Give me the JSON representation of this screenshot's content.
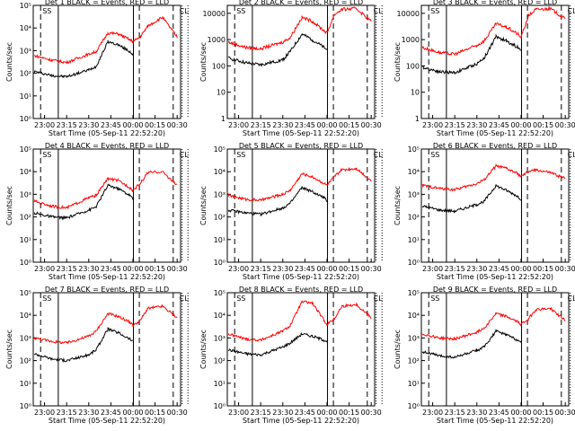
{
  "colors": {
    "events": "#000000",
    "lld": "#ff0000",
    "background": "#ffffff"
  },
  "x_ticks": [
    "23:00",
    "23:15",
    "23:30",
    "23:45",
    "00:00",
    "00:15",
    "00:30"
  ],
  "x_label": "Start Time (05-Sep-11 22:52:20)",
  "y_label": "Counts/sec",
  "ylim_log10": [
    0,
    5
  ],
  "markers": {
    "dashed_minutes": [
      5,
      72,
      95
    ],
    "solid_minutes": [
      17,
      68
    ],
    "dotted_minutes": [
      101,
      105
    ]
  },
  "panels_text": {
    "p1": {
      "title": "Det 1 BLACK = Events, RED = LLD",
      "y_ticks": [
        "10⁰",
        "10¹",
        "10²",
        "10³",
        "10⁴",
        "10⁵"
      ],
      "label_ss": "SS",
      "label_cl": "CL"
    },
    "p2": {
      "title": "Det 2 BLACK = Events, RED = LLD",
      "y_ticks": [
        "1",
        "10",
        "100",
        "1000",
        "10000"
      ],
      "label_ss": "SS",
      "label_cl": "CL"
    },
    "p3": {
      "title": "Det 3 BLACK = Events, RED = LLD",
      "y_ticks": [
        "1",
        "10",
        "100",
        "1000",
        "10000"
      ],
      "label_ss": "SS",
      "label_cl": "CL"
    },
    "p4": {
      "title": "Det 4 BLACK = Events, RED = LLD",
      "y_ticks": [
        "10⁰",
        "10¹",
        "10²",
        "10³",
        "10⁴",
        "10⁵"
      ],
      "label_ss": "SS",
      "label_cl": "CL"
    },
    "p5": {
      "title": "Det 5 BLACK = Events, RED = LLD",
      "y_ticks": [
        "10⁰",
        "10¹",
        "10²",
        "10³",
        "10⁴",
        "10⁵"
      ],
      "label_ss": "SS",
      "label_cl": "CL"
    },
    "p6": {
      "title": "Det 6 BLACK = Events, RED = LLD",
      "y_ticks": [
        "10⁰",
        "10¹",
        "10²",
        "10³",
        "10⁴",
        "10⁵"
      ],
      "label_ss": "SS",
      "label_cl": "CL"
    },
    "p7": {
      "title": "Det 7 BLACK = Events, RED = LLD",
      "y_ticks": [
        "10⁰",
        "10¹",
        "10²",
        "10³",
        "10⁴",
        "10⁵"
      ],
      "label_ss": "SS",
      "label_cl": "CL"
    },
    "p8": {
      "title": "Det 8 BLACK = Events, RED = LLD",
      "y_ticks": [
        "10⁰",
        "10¹",
        "10²",
        "10³",
        "10⁴",
        "10⁵"
      ],
      "label_ss": "SS",
      "label_cl": "CL"
    },
    "p9": {
      "title": "Det 9 BLACK = Events, RED = LLD",
      "y_ticks": [
        "10⁰",
        "10¹",
        "10²",
        "10³",
        "10⁴",
        "10⁵"
      ],
      "label_ss": "SS",
      "label_cl": "CL"
    }
  },
  "chart_data": [
    {
      "type": "line",
      "title": "Det 1 BLACK = Events, RED = LLD",
      "xlabel": "Start Time (05-Sep-11 22:52:20)",
      "ylabel": "Counts/sec",
      "yscale": "log",
      "ylim": [
        1,
        100000
      ],
      "series": [
        {
          "name": "Events",
          "color": "#000000",
          "x": [
            "22:53",
            "23:05",
            "23:15",
            "23:30",
            "23:35",
            "23:43",
            "23:50",
            "23:58",
            "00:00"
          ],
          "y": [
            120,
            80,
            70,
            140,
            200,
            2500,
            1800,
            900,
            700
          ]
        },
        {
          "name": "LLD",
          "color": "#ff0000",
          "x": [
            "22:53",
            "23:05",
            "23:15",
            "23:30",
            "23:35",
            "23:43",
            "23:50",
            "23:58",
            "00:00",
            "00:05",
            "00:10",
            "00:20",
            "00:30"
          ],
          "y": [
            600,
            380,
            300,
            700,
            900,
            6000,
            5500,
            3000,
            2500,
            4000,
            12000,
            30000,
            4000
          ]
        }
      ]
    },
    {
      "type": "line",
      "title": "Det 2 BLACK = Events, RED = LLD",
      "xlabel": "Start Time (05-Sep-11 22:52:20)",
      "ylabel": "Counts/sec",
      "yscale": "log",
      "ylim": [
        1,
        20000
      ],
      "series": [
        {
          "name": "Events",
          "color": "#000000",
          "x": [
            "22:53",
            "23:05",
            "23:15",
            "23:30",
            "23:35",
            "23:43",
            "23:50",
            "23:58",
            "00:00"
          ],
          "y": [
            200,
            130,
            110,
            170,
            350,
            1600,
            1000,
            500,
            400
          ]
        },
        {
          "name": "LLD",
          "color": "#ff0000",
          "x": [
            "22:53",
            "23:05",
            "23:15",
            "23:30",
            "23:35",
            "23:43",
            "23:50",
            "23:58",
            "00:00",
            "00:05",
            "00:10",
            "00:20",
            "00:30"
          ],
          "y": [
            800,
            500,
            450,
            800,
            1200,
            7000,
            5000,
            2200,
            1800,
            9000,
            14000,
            15000,
            5000
          ]
        }
      ]
    },
    {
      "type": "line",
      "title": "Det 3 BLACK = Events, RED = LLD",
      "xlabel": "Start Time (05-Sep-11 22:52:20)",
      "ylabel": "Counts/sec",
      "yscale": "log",
      "ylim": [
        1,
        20000
      ],
      "series": [
        {
          "name": "Events",
          "color": "#000000",
          "x": [
            "22:53",
            "23:05",
            "23:15",
            "23:30",
            "23:35",
            "23:43",
            "23:50",
            "23:58",
            "00:00"
          ],
          "y": [
            90,
            60,
            55,
            120,
            200,
            1300,
            900,
            500,
            400
          ]
        },
        {
          "name": "LLD",
          "color": "#ff0000",
          "x": [
            "22:53",
            "23:05",
            "23:15",
            "23:30",
            "23:35",
            "23:43",
            "23:50",
            "23:58",
            "00:00",
            "00:05",
            "00:10",
            "00:20",
            "00:30"
          ],
          "y": [
            500,
            320,
            280,
            600,
            900,
            4000,
            3000,
            1600,
            1200,
            8000,
            14000,
            15000,
            6000
          ]
        }
      ]
    },
    {
      "type": "line",
      "title": "Det 4 BLACK = Events, RED = LLD",
      "xlabel": "Start Time (05-Sep-11 22:52:20)",
      "ylabel": "Counts/sec",
      "yscale": "log",
      "ylim": [
        1,
        100000
      ],
      "series": [
        {
          "name": "Events",
          "color": "#000000",
          "x": [
            "22:53",
            "23:05",
            "23:15",
            "23:30",
            "23:35",
            "23:43",
            "23:50",
            "23:58",
            "00:00"
          ],
          "y": [
            150,
            100,
            90,
            200,
            280,
            2500,
            1800,
            900,
            600
          ]
        },
        {
          "name": "LLD",
          "color": "#ff0000",
          "x": [
            "22:53",
            "23:05",
            "23:15",
            "23:30",
            "23:35",
            "23:43",
            "23:50",
            "23:58",
            "00:00",
            "00:05",
            "00:10",
            "00:20",
            "00:30"
          ],
          "y": [
            500,
            300,
            250,
            700,
            900,
            5000,
            4000,
            2000,
            1500,
            3000,
            9000,
            10000,
            2500
          ]
        }
      ]
    },
    {
      "type": "line",
      "title": "Det 5 BLACK = Events, RED = LLD",
      "xlabel": "Start Time (05-Sep-11 22:52:20)",
      "ylabel": "Counts/sec",
      "yscale": "log",
      "ylim": [
        1,
        100000
      ],
      "series": [
        {
          "name": "Events",
          "color": "#000000",
          "x": [
            "22:53",
            "23:05",
            "23:15",
            "23:30",
            "23:35",
            "23:43",
            "23:50",
            "23:58",
            "00:00"
          ],
          "y": [
            200,
            150,
            130,
            250,
            400,
            2000,
            1300,
            700,
            500
          ]
        },
        {
          "name": "LLD",
          "color": "#ff0000",
          "x": [
            "22:53",
            "23:05",
            "23:15",
            "23:30",
            "23:35",
            "23:43",
            "23:50",
            "23:58",
            "00:00",
            "00:05",
            "00:10",
            "00:20",
            "00:30"
          ],
          "y": [
            900,
            600,
            550,
            1000,
            1500,
            8000,
            6000,
            3000,
            2500,
            6000,
            12000,
            14000,
            4000
          ]
        }
      ]
    },
    {
      "type": "line",
      "title": "Det 6 BLACK = Events, RED = LLD",
      "xlabel": "Start Time (05-Sep-11 22:52:20)",
      "ylabel": "Counts/sec",
      "yscale": "log",
      "ylim": [
        1,
        100000
      ],
      "series": [
        {
          "name": "Events",
          "color": "#000000",
          "x": [
            "22:53",
            "23:05",
            "23:15",
            "23:30",
            "23:35",
            "23:43",
            "23:50",
            "23:58",
            "00:00"
          ],
          "y": [
            300,
            200,
            180,
            350,
            500,
            2400,
            1500,
            800,
            600
          ]
        },
        {
          "name": "LLD",
          "color": "#ff0000",
          "x": [
            "22:53",
            "23:05",
            "23:15",
            "23:30",
            "23:35",
            "23:43",
            "23:50",
            "23:58",
            "00:00",
            "00:05",
            "00:10",
            "00:20",
            "00:30"
          ],
          "y": [
            2500,
            1800,
            1600,
            3000,
            4500,
            18000,
            14000,
            8000,
            6000,
            10000,
            12000,
            9000,
            5000
          ]
        }
      ]
    },
    {
      "type": "line",
      "title": "Det 7 BLACK = Events, RED = LLD",
      "xlabel": "Start Time (05-Sep-11 22:52:20)",
      "ylabel": "Counts/sec",
      "yscale": "log",
      "ylim": [
        1,
        100000
      ],
      "series": [
        {
          "name": "Events",
          "color": "#000000",
          "x": [
            "22:53",
            "23:05",
            "23:15",
            "23:30",
            "23:35",
            "23:43",
            "23:50",
            "23:58",
            "00:00"
          ],
          "y": [
            200,
            120,
            100,
            180,
            300,
            2500,
            1700,
            900,
            700
          ]
        },
        {
          "name": "LLD",
          "color": "#ff0000",
          "x": [
            "22:53",
            "23:05",
            "23:15",
            "23:30",
            "23:35",
            "23:43",
            "23:50",
            "23:58",
            "00:00",
            "00:05",
            "00:10",
            "00:20",
            "00:30"
          ],
          "y": [
            1000,
            700,
            600,
            1200,
            2000,
            12000,
            9000,
            5000,
            3500,
            6000,
            20000,
            25000,
            8000
          ]
        }
      ]
    },
    {
      "type": "line",
      "title": "Det 8 BLACK = Events, RED = LLD",
      "xlabel": "Start Time (05-Sep-11 22:52:20)",
      "ylabel": "Counts/sec",
      "yscale": "log",
      "ylim": [
        1,
        100000
      ],
      "series": [
        {
          "name": "Events",
          "color": "#000000",
          "x": [
            "22:53",
            "23:05",
            "23:15",
            "23:30",
            "23:35",
            "23:43",
            "23:50",
            "23:58",
            "00:00"
          ],
          "y": [
            300,
            200,
            180,
            400,
            600,
            1500,
            1200,
            800,
            700
          ]
        },
        {
          "name": "LLD",
          "color": "#ff0000",
          "x": [
            "22:53",
            "23:05",
            "23:15",
            "23:30",
            "23:35",
            "23:43",
            "23:50",
            "23:58",
            "00:00",
            "00:05",
            "00:10",
            "00:20",
            "00:30"
          ],
          "y": [
            1500,
            900,
            800,
            2000,
            3500,
            40000,
            35000,
            6000,
            4000,
            7000,
            25000,
            30000,
            8000
          ]
        }
      ]
    },
    {
      "type": "line",
      "title": "Det 9 BLACK = Events, RED = LLD",
      "xlabel": "Start Time (05-Sep-11 22:52:20)",
      "ylabel": "Counts/sec",
      "yscale": "log",
      "ylim": [
        1,
        100000
      ],
      "series": [
        {
          "name": "Events",
          "color": "#000000",
          "x": [
            "22:53",
            "23:05",
            "23:15",
            "23:30",
            "23:35",
            "23:43",
            "23:50",
            "23:58",
            "00:00"
          ],
          "y": [
            250,
            160,
            140,
            280,
            400,
            2000,
            1400,
            800,
            600
          ]
        },
        {
          "name": "LLD",
          "color": "#ff0000",
          "x": [
            "22:53",
            "23:05",
            "23:15",
            "23:30",
            "23:35",
            "23:43",
            "23:50",
            "23:58",
            "00:00",
            "00:05",
            "00:10",
            "00:20",
            "00:30"
          ],
          "y": [
            1500,
            1000,
            900,
            1800,
            2800,
            12000,
            9000,
            5000,
            4000,
            7000,
            18000,
            20000,
            6000
          ]
        }
      ]
    }
  ]
}
